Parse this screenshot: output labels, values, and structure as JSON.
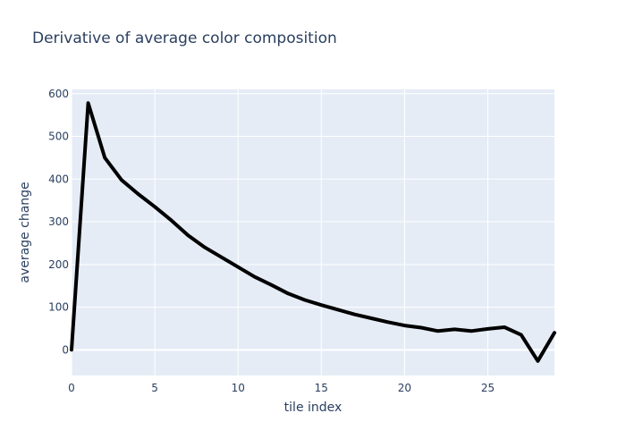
{
  "chart_data": {
    "type": "line",
    "title": "Derivative of average color composition",
    "xlabel": "tile index",
    "ylabel": "average change",
    "xlim": [
      0,
      29
    ],
    "ylim": [
      -60,
      610
    ],
    "xticks": [
      0,
      5,
      10,
      15,
      20,
      25
    ],
    "yticks": [
      0,
      100,
      200,
      300,
      400,
      500,
      600
    ],
    "grid": true,
    "legend": "none",
    "colors": {
      "background": "#e5ecf6",
      "grid": "#ffffff",
      "line": "#000000",
      "text": "#2a3f5f"
    },
    "series": [
      {
        "x": [
          0,
          1,
          2,
          3,
          4,
          5,
          6,
          7,
          8,
          9,
          10,
          11,
          12,
          13,
          14,
          15,
          16,
          17,
          18,
          19,
          20,
          21,
          22,
          23,
          24,
          25,
          26,
          27,
          28,
          29
        ],
        "values": [
          0,
          578,
          450,
          398,
          365,
          335,
          303,
          268,
          240,
          217,
          194,
          171,
          152,
          132,
          117,
          105,
          94,
          83,
          74,
          65,
          57,
          52,
          44,
          48,
          44,
          49,
          53,
          35,
          -26,
          40
        ]
      }
    ]
  }
}
